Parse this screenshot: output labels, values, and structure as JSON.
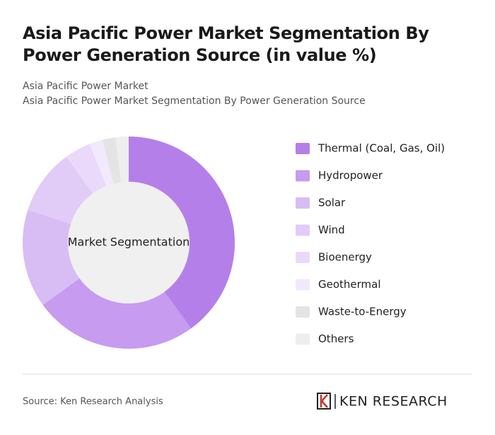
{
  "chart_data": {
    "type": "donut",
    "title": "Asia Pacific Power Market Segmentation By Power Generation Source (in value %)",
    "subtitles": [
      "Asia Pacific Power Market",
      "Asia Pacific Power Market Segmentation By Power Generation Source"
    ],
    "center_label": "Market Segmentation",
    "categories": [
      "Thermal (Coal, Gas, Oil)",
      "Hydropower",
      "Solar",
      "Wind",
      "Bioenergy",
      "Geothermal",
      "Waste-to-Energy",
      "Others"
    ],
    "values": [
      40,
      25,
      15,
      10,
      4,
      2,
      2,
      2
    ],
    "colors": [
      "#b57fea",
      "#c69bf0",
      "#d8bdf5",
      "#e1ccf7",
      "#ead9fa",
      "#f2e9fc",
      "#e4e4e4",
      "#eeeeee"
    ],
    "source": "Source: Ken Research Analysis",
    "brand": "KEN RESEARCH"
  }
}
